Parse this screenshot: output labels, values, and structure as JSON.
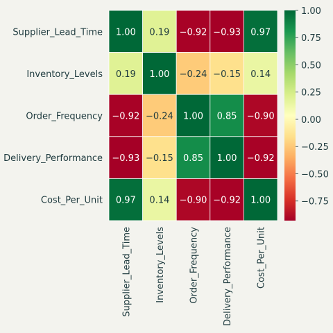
{
  "chart_data": {
    "type": "heatmap",
    "title": "",
    "xlabel": "",
    "ylabel": "",
    "rows": [
      "Supplier_Lead_Time",
      "Inventory_Levels",
      "Order_Frequency",
      "Delivery_Performance",
      "Cost_Per_Unit"
    ],
    "columns": [
      "Supplier_Lead_Time",
      "Inventory_Levels",
      "Order_Frequency",
      "Delivery_Performance",
      "Cost_Per_Unit"
    ],
    "values": [
      [
        1.0,
        0.19,
        -0.92,
        -0.93,
        0.97
      ],
      [
        0.19,
        1.0,
        -0.24,
        -0.15,
        0.14
      ],
      [
        -0.92,
        -0.24,
        1.0,
        0.85,
        -0.9
      ],
      [
        -0.93,
        -0.15,
        0.85,
        1.0,
        -0.92
      ],
      [
        0.97,
        0.14,
        -0.9,
        -0.92,
        1.0
      ]
    ],
    "annotations_format": "0.00",
    "colormap": "RdYlGn",
    "value_range": [
      -0.93,
      1.0
    ],
    "colorbar": {
      "ticks": [
        1.0,
        0.75,
        0.5,
        0.25,
        0.0,
        -0.25,
        -0.5,
        -0.75
      ],
      "tick_labels": [
        "1.00",
        "0.75",
        "0.50",
        "0.25",
        "0.00",
        "−0.25",
        "−0.50",
        "−0.75"
      ]
    }
  },
  "colors": {
    "background": "#f3f3ee",
    "text": "#1f3b3f",
    "cell_border": "#ffffff"
  }
}
